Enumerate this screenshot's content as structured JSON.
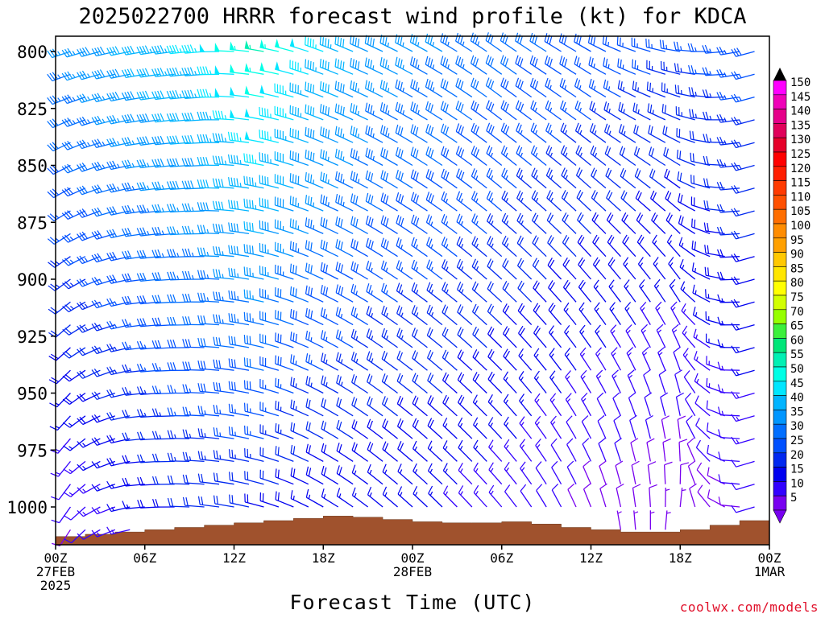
{
  "title": "2025022700 HRRR forecast wind profile (kt) for KDCA",
  "xlabel": "Forecast Time (UTC)",
  "credit": "coolwx.com/models",
  "chart_data": {
    "type": "wind_barb_time_height",
    "y_axis": {
      "quantity": "pressure (hPa)",
      "ticks": [
        800,
        825,
        850,
        875,
        900,
        925,
        950,
        975,
        1000
      ],
      "range": [
        800,
        1020
      ],
      "inverted": true
    },
    "x_axis": {
      "range_hours": [
        0,
        48
      ],
      "ticks": [
        {
          "hour": 0,
          "lines": [
            "00Z",
            "27FEB",
            "2025"
          ]
        },
        {
          "hour": 6,
          "lines": [
            "06Z"
          ]
        },
        {
          "hour": 12,
          "lines": [
            "12Z"
          ]
        },
        {
          "hour": 18,
          "lines": [
            "18Z"
          ]
        },
        {
          "hour": 24,
          "lines": [
            "00Z",
            "28FEB"
          ]
        },
        {
          "hour": 30,
          "lines": [
            "06Z"
          ]
        },
        {
          "hour": 36,
          "lines": [
            "12Z"
          ]
        },
        {
          "hour": 42,
          "lines": [
            "18Z"
          ]
        },
        {
          "hour": 48,
          "lines": [
            "00Z",
            "1MAR"
          ]
        }
      ]
    },
    "colorbar": {
      "unit": "kt",
      "labels": [
        150,
        145,
        140,
        135,
        130,
        125,
        120,
        115,
        110,
        105,
        100,
        95,
        90,
        85,
        80,
        75,
        70,
        65,
        60,
        55,
        50,
        45,
        40,
        35,
        30,
        25,
        20,
        15,
        10,
        5
      ],
      "colors": [
        "#ff00ff",
        "#ef00b8",
        "#e6008a",
        "#e0005a",
        "#e6002a",
        "#ff0000",
        "#ff1e00",
        "#ff3a00",
        "#ff5000",
        "#ff6e00",
        "#ff8c00",
        "#ffa000",
        "#ffc800",
        "#ffe600",
        "#ffff00",
        "#d2ff00",
        "#96ff00",
        "#3cf03c",
        "#00e678",
        "#00f0b4",
        "#00ffe6",
        "#00e6ff",
        "#00b4ff",
        "#0096ff",
        "#006eff",
        "#0050ff",
        "#0028f0",
        "#0000f0",
        "#3200ff",
        "#7800f0"
      ]
    },
    "wind_barbs": {
      "levels_hpa": [
        800,
        810,
        820,
        830,
        840,
        850,
        860,
        870,
        880,
        890,
        900,
        910,
        920,
        930,
        940,
        950,
        960,
        970,
        980,
        990,
        1000,
        1010
      ],
      "keyframes": [
        {
          "hour": 0,
          "dir_top": 250,
          "spd_top": 35,
          "dir_bot": 200,
          "spd_bot": 8
        },
        {
          "hour": 3,
          "dir_top": 255,
          "spd_top": 38,
          "dir_bot": 240,
          "spd_bot": 12
        },
        {
          "hour": 6,
          "dir_top": 260,
          "spd_top": 42,
          "dir_bot": 265,
          "spd_bot": 15
        },
        {
          "hour": 10,
          "dir_top": 265,
          "spd_top": 46,
          "dir_bot": 275,
          "spd_bot": 20
        },
        {
          "hour": 14,
          "dir_top": 280,
          "spd_top": 55,
          "dir_bot": 285,
          "spd_bot": 18
        },
        {
          "hour": 18,
          "dir_top": 290,
          "spd_top": 45,
          "dir_bot": 300,
          "spd_bot": 15
        },
        {
          "hour": 22,
          "dir_top": 295,
          "spd_top": 38,
          "dir_bot": 310,
          "spd_bot": 15
        },
        {
          "hour": 26,
          "dir_top": 300,
          "spd_top": 35,
          "dir_bot": 315,
          "spd_bot": 14
        },
        {
          "hour": 30,
          "dir_top": 305,
          "spd_top": 32,
          "dir_bot": 320,
          "spd_bot": 12
        },
        {
          "hour": 36,
          "dir_top": 300,
          "spd_top": 28,
          "dir_bot": 340,
          "spd_bot": 8
        },
        {
          "hour": 42,
          "dir_top": 280,
          "spd_top": 25,
          "dir_bot": 10,
          "spd_bot": 6
        },
        {
          "hour": 48,
          "dir_top": 250,
          "spd_top": 28,
          "dir_bot": 230,
          "spd_bot": 10
        }
      ]
    },
    "terrain": {
      "fill_color": "#a0522d",
      "hours": [
        0,
        2,
        4,
        6,
        8,
        10,
        12,
        14,
        16,
        18,
        20,
        22,
        24,
        26,
        28,
        30,
        32,
        34,
        36,
        38,
        40,
        42,
        44,
        46,
        48
      ],
      "surface_hpa": [
        1013,
        1012,
        1011,
        1010,
        1009,
        1008,
        1007,
        1006,
        1005,
        1004,
        1004.5,
        1005.5,
        1006.5,
        1007,
        1007,
        1006.5,
        1007.5,
        1009,
        1010,
        1011,
        1011,
        1010,
        1008,
        1006,
        1005
      ]
    }
  }
}
